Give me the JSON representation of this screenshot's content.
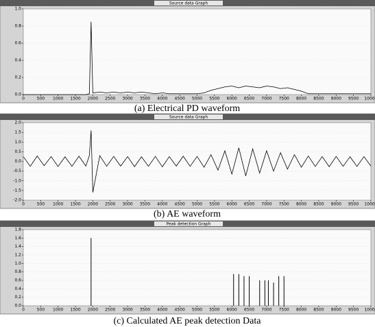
{
  "chart_data": [
    {
      "type": "line",
      "title": "Source data Graph",
      "caption": "(a) Electrical PD waveform",
      "color": "#000000",
      "x": [
        0,
        200,
        400,
        600,
        800,
        1000,
        1200,
        1400,
        1600,
        1800,
        1900,
        1950,
        2000,
        2200,
        2400,
        2600,
        2800,
        3000,
        3200,
        3400,
        3600,
        3800,
        4000,
        4200,
        4400,
        4600,
        4800,
        5000,
        5200,
        5400,
        5600,
        5800,
        6000,
        6200,
        6400,
        6600,
        6800,
        7000,
        7200,
        7400,
        7600,
        7800,
        8000,
        8200,
        8400,
        8600,
        8800,
        9000,
        9200,
        9400,
        9600,
        9800,
        10000
      ],
      "values": [
        0,
        0,
        0,
        0,
        0,
        0,
        0,
        0,
        0,
        0,
        0.01,
        0.85,
        0.02,
        0.03,
        0.02,
        0.03,
        0.02,
        0.03,
        0.02,
        0.03,
        0.02,
        0.01,
        0.02,
        0.01,
        0.01,
        0.01,
        0.01,
        0.01,
        0.02,
        0.05,
        0.07,
        0.09,
        0.1,
        0.08,
        0.1,
        0.09,
        0.08,
        0.1,
        0.09,
        0.07,
        0.08,
        0.06,
        0.04,
        0.01,
        0.01,
        0.01,
        0.01,
        0.01,
        0.01,
        0.01,
        0.01,
        0.01,
        0.01
      ],
      "xlim": [
        0,
        10000
      ],
      "xticks": [
        0,
        500,
        1000,
        1500,
        2000,
        2500,
        3000,
        3500,
        4000,
        4500,
        5000,
        5500,
        6000,
        6500,
        7000,
        7500,
        8000,
        8500,
        9000,
        9500,
        10000
      ],
      "ylim": [
        0,
        1
      ],
      "yticks": [
        {
          "value": 0,
          "label": "0.0"
        },
        0.2,
        0.4,
        0.6,
        0.8,
        {
          "value": 1,
          "label": "1.0"
        }
      ]
    },
    {
      "type": "line",
      "title": "Source data Graph",
      "caption": "(b) AE waveform",
      "color": "#000000",
      "x": [
        0,
        200,
        400,
        600,
        800,
        1000,
        1200,
        1400,
        1600,
        1800,
        1900,
        1950,
        2000,
        2200,
        2400,
        2600,
        2800,
        3000,
        3200,
        3400,
        3600,
        3800,
        4000,
        4200,
        4400,
        4600,
        4800,
        5000,
        5200,
        5400,
        5600,
        5800,
        6000,
        6200,
        6400,
        6600,
        6800,
        7000,
        7200,
        7400,
        7600,
        7800,
        8000,
        8200,
        8400,
        8600,
        8800,
        9000,
        9200,
        9400,
        9600,
        9800,
        10000
      ],
      "values": [
        0.25,
        -0.25,
        0.28,
        -0.22,
        0.25,
        -0.26,
        0.24,
        -0.25,
        0.27,
        -0.24,
        0.3,
        1.6,
        -1.6,
        0.3,
        -0.25,
        0.26,
        -0.24,
        0.25,
        -0.27,
        0.24,
        -0.25,
        0.26,
        -0.28,
        0.25,
        -0.24,
        0.27,
        -0.25,
        0.26,
        -0.3,
        0.35,
        -0.45,
        0.55,
        -0.65,
        0.7,
        -0.75,
        0.65,
        -0.6,
        0.55,
        -0.5,
        0.45,
        -0.4,
        0.35,
        -0.3,
        0.28,
        -0.26,
        0.25,
        -0.27,
        0.26,
        -0.25,
        0.24,
        -0.26,
        0.25,
        -0.24
      ],
      "xlim": [
        0,
        10000
      ],
      "xticks": [
        0,
        500,
        1000,
        1500,
        2000,
        2500,
        3000,
        3500,
        4000,
        4500,
        5000,
        5500,
        6000,
        6500,
        7000,
        7500,
        8000,
        8500,
        9000,
        9500,
        10000
      ],
      "ylim": [
        -2,
        2
      ],
      "yticks": [
        {
          "value": -2,
          "label": "-2.0"
        },
        -1.5,
        {
          "value": -1,
          "label": "-1.0"
        },
        -0.5,
        {
          "value": 0,
          "label": "0.0"
        },
        0.5,
        {
          "value": 1,
          "label": "1.0"
        },
        1.5,
        {
          "value": 2,
          "label": "2.0"
        }
      ]
    },
    {
      "type": "stem",
      "title": "Peak detection Graph",
      "caption": "(c) Calculated AE peak detection Data",
      "color": "#000000",
      "x": [
        1950,
        6050,
        6200,
        6350,
        6500,
        6800,
        6950,
        7050,
        7200,
        7350,
        7500
      ],
      "values": [
        1.6,
        0.75,
        0.75,
        0.7,
        0.7,
        0.6,
        0.6,
        0.6,
        0.55,
        0.7,
        0.7
      ],
      "xlim": [
        0,
        10000
      ],
      "xticks": [
        0,
        500,
        1000,
        1500,
        2000,
        2500,
        3000,
        3500,
        4000,
        4500,
        5000,
        5500,
        6000,
        6500,
        7000,
        7500,
        8000,
        8500,
        9000,
        9500,
        10000
      ],
      "ylim": [
        0,
        1.8
      ],
      "yticks": [
        {
          "value": 0,
          "label": "0.0"
        },
        0.2,
        0.4,
        0.6,
        0.8,
        {
          "value": 1,
          "label": "1.0"
        },
        1.2,
        1.4,
        1.6,
        1.8
      ]
    }
  ]
}
